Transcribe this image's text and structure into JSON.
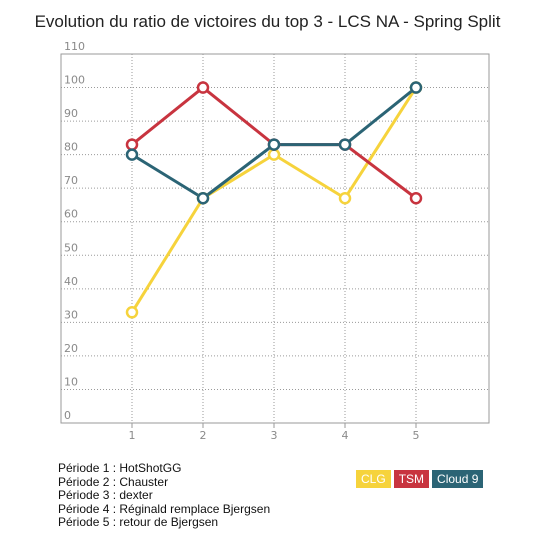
{
  "chart_data": {
    "type": "line",
    "title": "Evolution du ratio de victoires du top 3 - LCS NA - Spring Split",
    "xlabel": "",
    "ylabel": "",
    "categories": [
      "1",
      "2",
      "3",
      "4",
      "5"
    ],
    "y_ticks": [
      "0",
      "10",
      "20",
      "30",
      "40",
      "50",
      "60",
      "70",
      "80",
      "90",
      "100",
      "110"
    ],
    "ylim": [
      0,
      110
    ],
    "grid": true,
    "legend_position": "bottom-right",
    "series": [
      {
        "name": "CLG",
        "color": "#f6d33c",
        "values": [
          33,
          67,
          80,
          67,
          100
        ]
      },
      {
        "name": "TSM",
        "color": "#c8343f",
        "values": [
          83,
          100,
          83,
          83,
          67
        ]
      },
      {
        "name": "Cloud 9",
        "color": "#2b6475",
        "values": [
          80,
          67,
          83,
          83,
          100
        ]
      }
    ]
  },
  "notes": [
    "Période 1 : HotShotGG",
    "Période 2 : Chauster",
    "Période 3 : dexter",
    "Période 4 : Réginald remplace Bjergsen",
    "Période 5 : retour de Bjergsen"
  ]
}
